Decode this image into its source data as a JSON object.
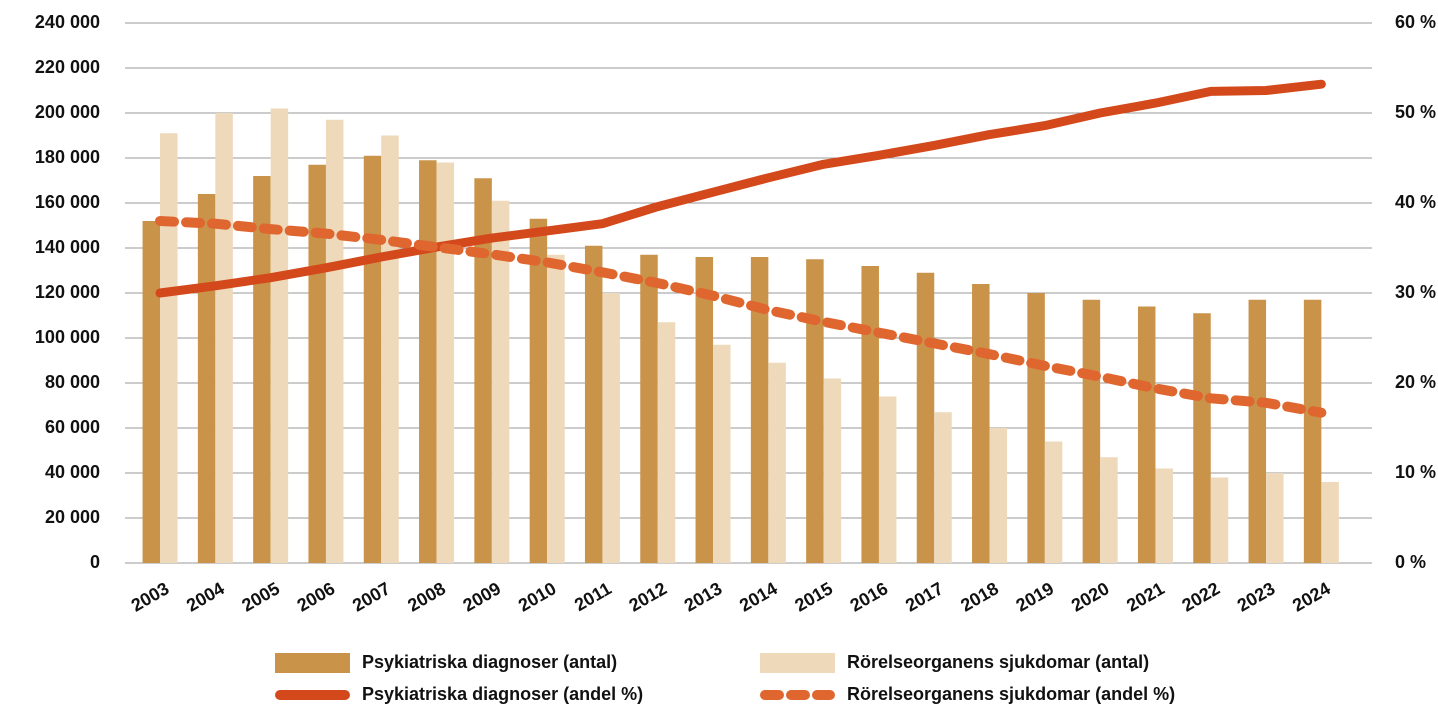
{
  "chart_data": {
    "type": "bar",
    "categories": [
      "2003",
      "2004",
      "2005",
      "2006",
      "2007",
      "2008",
      "2009",
      "2010",
      "2011",
      "2012",
      "2013",
      "2014",
      "2015",
      "2016",
      "2017",
      "2018",
      "2019",
      "2020",
      "2021",
      "2022",
      "2023",
      "2024"
    ],
    "series": [
      {
        "name": "Psykiatriska diagnoser  (antal)",
        "type": "bar",
        "color": "#c9944a",
        "values": [
          152000,
          164000,
          172000,
          177000,
          181000,
          179000,
          171000,
          153000,
          141000,
          137000,
          136000,
          136000,
          135000,
          132000,
          129000,
          124000,
          120000,
          117000,
          114000,
          111000,
          117000,
          117000
        ]
      },
      {
        "name": "Rörelseorganens sjukdomar (antal)",
        "type": "bar",
        "color": "#eed9bb",
        "values": [
          191000,
          200000,
          202000,
          197000,
          190000,
          178000,
          161000,
          137000,
          120000,
          107000,
          97000,
          89000,
          82000,
          74000,
          67000,
          60000,
          54000,
          47000,
          42000,
          38000,
          40000,
          36000
        ]
      },
      {
        "name": "Psykiatriska diagnoser (andel %)",
        "type": "line",
        "axis": "y2",
        "color": "#d4491b",
        "dashed": false,
        "values": [
          30.0,
          30.8,
          31.7,
          32.8,
          34.0,
          35.1,
          36.1,
          36.9,
          37.7,
          39.6,
          41.2,
          42.8,
          44.3,
          45.3,
          46.4,
          47.6,
          48.6,
          50.0,
          51.1,
          52.4,
          52.5,
          53.2
        ]
      },
      {
        "name": "Rörelseorganens sjukdomar (andel %)",
        "type": "line",
        "axis": "y2",
        "color": "#e0662f",
        "dashed": true,
        "values": [
          38.0,
          37.7,
          37.1,
          36.6,
          35.9,
          35.1,
          34.3,
          33.4,
          32.3,
          31.1,
          29.7,
          28.1,
          26.8,
          25.6,
          24.4,
          23.2,
          21.9,
          20.7,
          19.4,
          18.3,
          17.8,
          16.7
        ]
      }
    ],
    "ylim": [
      0,
      240000
    ],
    "yticks": [
      0,
      {
        "value": 20000,
        "label": "20 000"
      },
      {
        "value": 40000,
        "label": "40 000"
      },
      {
        "value": 60000,
        "label": "60 000"
      },
      {
        "value": 80000,
        "label": "80 000"
      },
      {
        "value": 100000,
        "label": "100 000"
      },
      {
        "value": 120000,
        "label": "120 000"
      },
      {
        "value": 140000,
        "label": "140 000"
      },
      {
        "value": 160000,
        "label": "160 000"
      },
      {
        "value": 180000,
        "label": "180 000"
      },
      {
        "value": 200000,
        "label": "200 000"
      },
      {
        "value": 220000,
        "label": "220 000"
      },
      {
        "value": 240000,
        "label": "240 000"
      }
    ],
    "y2lim": [
      0,
      60
    ],
    "y2ticks": [
      {
        "value": 0,
        "label": "0 %"
      },
      {
        "value": 10,
        "label": "10 %"
      },
      {
        "value": 20,
        "label": "20 %"
      },
      {
        "value": 30,
        "label": "30 %"
      },
      {
        "value": 40,
        "label": "40 %"
      },
      {
        "value": 50,
        "label": "50 %"
      },
      {
        "value": 60,
        "label": "60 %"
      }
    ],
    "grid": true,
    "legend": "bottom"
  }
}
